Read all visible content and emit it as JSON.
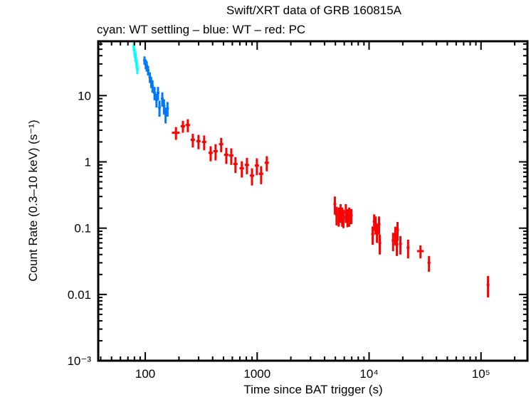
{
  "chart_data": {
    "type": "scatter",
    "title": "Swift/XRT data of GRB 160815A",
    "subtitle": "cyan: WT settling – blue: WT – red: PC",
    "xlabel": "Time since BAT trigger (s)",
    "ylabel": "Count Rate (0.3–10 keV) (s⁻¹)",
    "xscale": "log",
    "yscale": "log",
    "xlim": [
      38,
      260000
    ],
    "ylim": [
      0.001,
      66
    ],
    "grid": false,
    "x_ticks": [
      {
        "value": 100,
        "label": "100"
      },
      {
        "value": 1000,
        "label": "1000"
      },
      {
        "value": 10000,
        "label": "10⁴"
      },
      {
        "value": 100000,
        "label": "10⁵"
      }
    ],
    "y_ticks": [
      {
        "value": 10,
        "label": "10"
      },
      {
        "value": 1,
        "label": "1"
      },
      {
        "value": 0.1,
        "label": "0.1"
      },
      {
        "value": 0.01,
        "label": "0.01"
      },
      {
        "value": 0.001,
        "label": "10⁻³"
      }
    ],
    "series": [
      {
        "name": "WT settling",
        "color": "#00ffff",
        "points": [
          {
            "t": 79,
            "terr": 1,
            "r": 54,
            "rerr": 8
          },
          {
            "t": 80.5,
            "terr": 1,
            "r": 44,
            "rerr": 7
          },
          {
            "t": 82,
            "terr": 1,
            "r": 38,
            "rerr": 6
          },
          {
            "t": 83.5,
            "terr": 1,
            "r": 31,
            "rerr": 5
          },
          {
            "t": 85,
            "terr": 1,
            "r": 25,
            "rerr": 4
          }
        ]
      },
      {
        "name": "WT",
        "color": "#0077ff",
        "points": [
          {
            "t": 98.5,
            "terr": 1.5,
            "r": 34,
            "rerr": 5
          },
          {
            "t": 101,
            "terr": 1.5,
            "r": 30,
            "rerr": 5
          },
          {
            "t": 103,
            "terr": 1.5,
            "r": 28,
            "rerr": 5
          },
          {
            "t": 106,
            "terr": 1.5,
            "r": 24,
            "rerr": 4
          },
          {
            "t": 110,
            "terr": 1.5,
            "r": 19,
            "rerr": 3.5
          },
          {
            "t": 113,
            "terr": 1.5,
            "r": 16,
            "rerr": 3
          },
          {
            "t": 116,
            "terr": 1.5,
            "r": 14,
            "rerr": 3
          },
          {
            "t": 121,
            "terr": 2,
            "r": 11,
            "rerr": 2.5
          },
          {
            "t": 126,
            "terr": 2,
            "r": 8.6,
            "rerr": 2
          },
          {
            "t": 130,
            "terr": 2,
            "r": 11,
            "rerr": 2.5
          },
          {
            "t": 134,
            "terr": 2,
            "r": 6.6,
            "rerr": 1.8
          },
          {
            "t": 142,
            "terr": 2,
            "r": 9.0,
            "rerr": 2.2
          },
          {
            "t": 147,
            "terr": 2,
            "r": 7.0,
            "rerr": 1.8
          },
          {
            "t": 152,
            "terr": 2.5,
            "r": 5.2,
            "rerr": 1.4
          },
          {
            "t": 158,
            "terr": 2.5,
            "r": 6.4,
            "rerr": 1.6
          }
        ]
      },
      {
        "name": "PC",
        "color": "#ff0000",
        "points": [
          {
            "t": 188,
            "terr": 15,
            "r": 2.75,
            "rerr": 0.6
          },
          {
            "t": 217,
            "terr": 10,
            "r": 3.45,
            "rerr": 0.7
          },
          {
            "t": 240,
            "terr": 11,
            "r": 3.6,
            "rerr": 0.8
          },
          {
            "t": 266,
            "terr": 12,
            "r": 2.15,
            "rerr": 0.5
          },
          {
            "t": 299,
            "terr": 13,
            "r": 2.05,
            "rerr": 0.5
          },
          {
            "t": 336,
            "terr": 15,
            "r": 2.0,
            "rerr": 0.5
          },
          {
            "t": 384,
            "terr": 17,
            "r": 1.37,
            "rerr": 0.35
          },
          {
            "t": 425,
            "terr": 19,
            "r": 1.45,
            "rerr": 0.4
          },
          {
            "t": 477,
            "terr": 21,
            "r": 1.85,
            "rerr": 0.45
          },
          {
            "t": 530,
            "terr": 24,
            "r": 1.28,
            "rerr": 0.35
          },
          {
            "t": 587,
            "terr": 26,
            "r": 1.25,
            "rerr": 0.35
          },
          {
            "t": 640,
            "terr": 28,
            "r": 0.93,
            "rerr": 0.25
          },
          {
            "t": 729,
            "terr": 33,
            "r": 0.8,
            "rerr": 0.22
          },
          {
            "t": 810,
            "terr": 36,
            "r": 0.9,
            "rerr": 0.25
          },
          {
            "t": 899,
            "terr": 40,
            "r": 0.62,
            "rerr": 0.18
          },
          {
            "t": 994,
            "terr": 44,
            "r": 0.88,
            "rerr": 0.25
          },
          {
            "t": 1085,
            "terr": 48,
            "r": 0.66,
            "rerr": 0.2
          },
          {
            "t": 1219,
            "terr": 54,
            "r": 0.97,
            "rerr": 0.25
          },
          {
            "t": 4945,
            "terr": 60,
            "r": 0.23,
            "rerr": 0.07
          },
          {
            "t": 5120,
            "terr": 60,
            "r": 0.16,
            "rerr": 0.05
          },
          {
            "t": 5350,
            "terr": 60,
            "r": 0.155,
            "rerr": 0.05
          },
          {
            "t": 5570,
            "terr": 60,
            "r": 0.175,
            "rerr": 0.055
          },
          {
            "t": 5750,
            "terr": 60,
            "r": 0.155,
            "rerr": 0.05
          },
          {
            "t": 5900,
            "terr": 60,
            "r": 0.145,
            "rerr": 0.045
          },
          {
            "t": 6200,
            "terr": 60,
            "r": 0.175,
            "rerr": 0.055
          },
          {
            "t": 6400,
            "terr": 60,
            "r": 0.148,
            "rerr": 0.045
          },
          {
            "t": 6640,
            "terr": 60,
            "r": 0.155,
            "rerr": 0.05
          },
          {
            "t": 6930,
            "terr": 120,
            "r": 0.155,
            "rerr": 0.04
          },
          {
            "t": 10760,
            "terr": 130,
            "r": 0.081,
            "rerr": 0.025
          },
          {
            "t": 11100,
            "terr": 130,
            "r": 0.126,
            "rerr": 0.035
          },
          {
            "t": 11420,
            "terr": 130,
            "r": 0.115,
            "rerr": 0.035
          },
          {
            "t": 11760,
            "terr": 130,
            "r": 0.088,
            "rerr": 0.028
          },
          {
            "t": 12280,
            "terr": 250,
            "r": 0.115,
            "rerr": 0.035
          },
          {
            "t": 12450,
            "terr": 150,
            "r": 0.06,
            "rerr": 0.02
          },
          {
            "t": 16390,
            "terr": 200,
            "r": 0.065,
            "rerr": 0.02
          },
          {
            "t": 17150,
            "terr": 200,
            "r": 0.08,
            "rerr": 0.025
          },
          {
            "t": 17700,
            "terr": 200,
            "r": 0.056,
            "rerr": 0.018
          },
          {
            "t": 17950,
            "terr": 300,
            "r": 0.094,
            "rerr": 0.03
          },
          {
            "t": 19060,
            "terr": 400,
            "r": 0.058,
            "rerr": 0.018
          },
          {
            "t": 22300,
            "terr": 500,
            "r": 0.051,
            "rerr": 0.016
          },
          {
            "t": 28800,
            "terr": 2000,
            "r": 0.045,
            "rerr": 0.01
          },
          {
            "t": 34300,
            "terr": 800,
            "r": 0.03,
            "rerr": 0.008
          },
          {
            "t": 115500,
            "terr": 2500,
            "r": 0.014,
            "rerr": 0.005
          }
        ]
      }
    ]
  }
}
